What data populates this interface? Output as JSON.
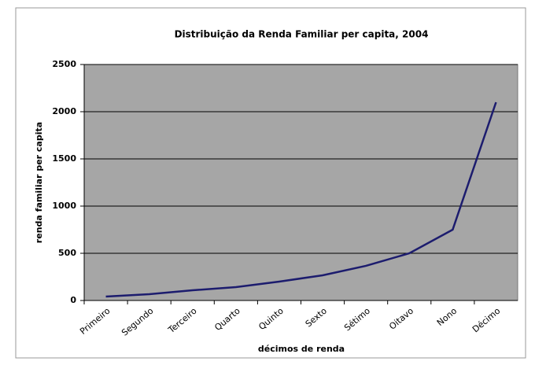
{
  "chart_data": {
    "type": "line",
    "title": "Distribuição da Renda Familiar per capita, 2004",
    "x_label": "décimos de renda",
    "y_label": "renda familiar per capita",
    "categories": [
      "Primeiro",
      "Segundo",
      "Terceiro",
      "Quarto",
      "Quinto",
      "Sexto",
      "Sétimo",
      "Oitavo",
      "Nono",
      "Décimo"
    ],
    "series": [
      {
        "name": "renda familiar per capita",
        "color": "#1c1c6e",
        "values": [
          42,
          67,
          108,
          142,
          200,
          267,
          367,
          500,
          750,
          2100
        ]
      }
    ],
    "ylim": [
      0,
      2500
    ],
    "yticks": [
      0,
      500,
      1000,
      1500,
      2000,
      2500
    ],
    "grid": true
  }
}
